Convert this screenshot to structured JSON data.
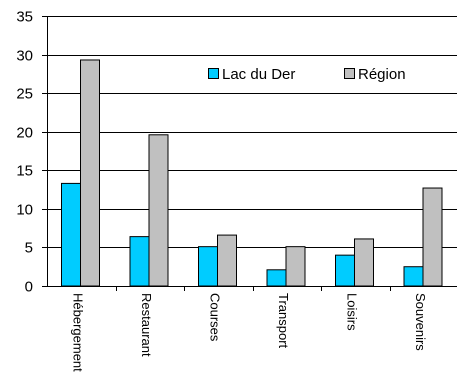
{
  "chart_data": {
    "type": "bar",
    "categories": [
      "Hébergement",
      "Restaurant",
      "Courses",
      "Transport",
      "Loisirs",
      "Souvenirs"
    ],
    "series": [
      {
        "name": "Lac du Der",
        "color": "#00CCFF",
        "values": [
          13.3,
          6.4,
          5.1,
          2.1,
          4.0,
          2.5
        ]
      },
      {
        "name": "Région",
        "color": "#C0C0C0",
        "values": [
          29.3,
          19.6,
          6.6,
          5.1,
          6.1,
          12.7
        ]
      }
    ],
    "title": "",
    "xlabel": "",
    "ylabel": "",
    "ylim": [
      0,
      35
    ],
    "yticks": [
      0,
      5,
      10,
      15,
      20,
      25,
      30,
      35
    ],
    "grid": true,
    "legend_position": "top-right"
  }
}
